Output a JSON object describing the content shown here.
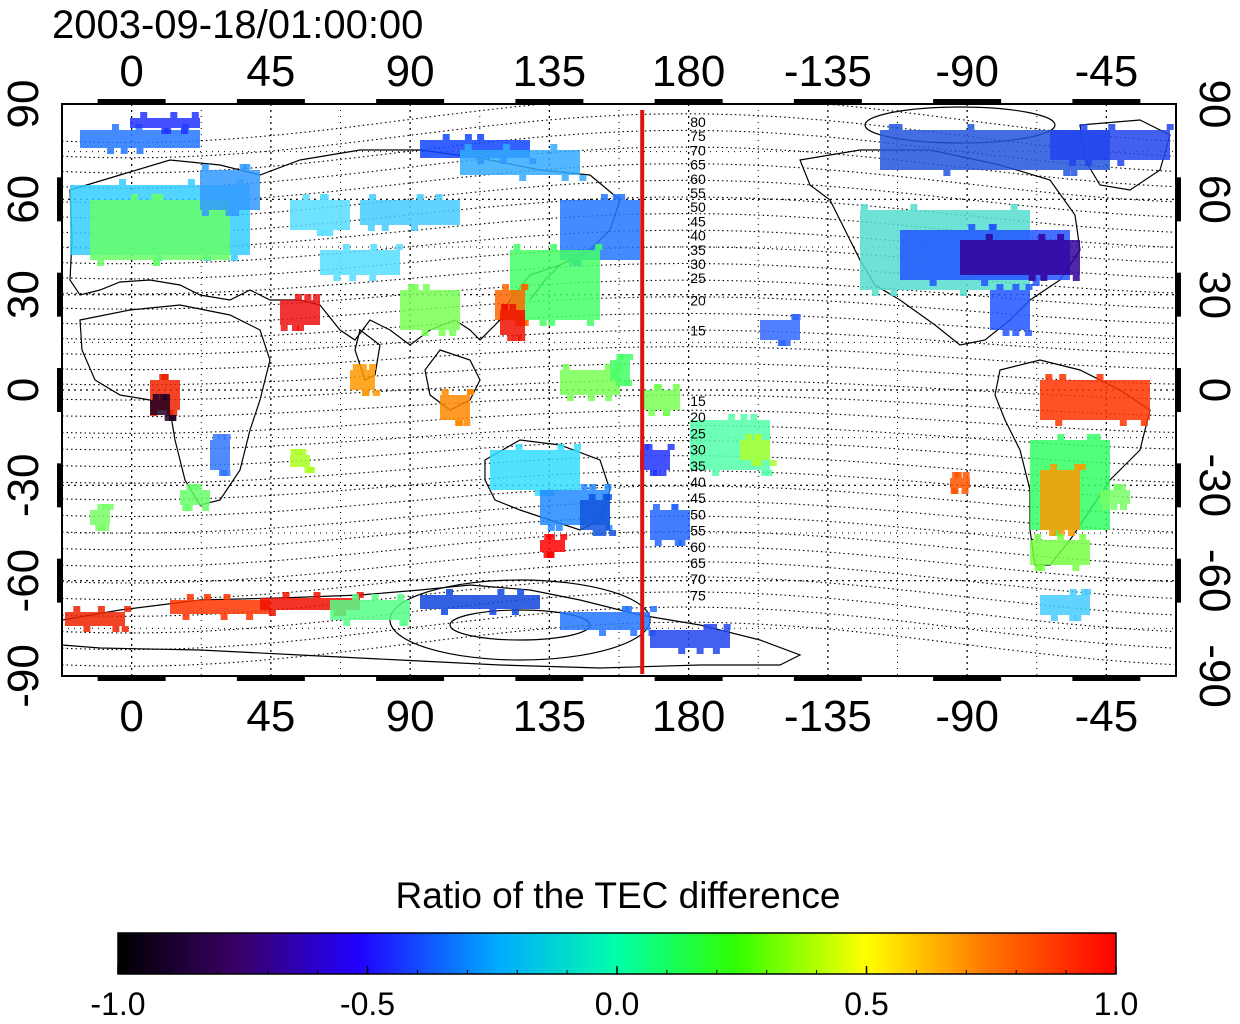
{
  "header": {
    "timestamp": "2003-09-18/01:00:00"
  },
  "map": {
    "lon_ticks": [
      "0",
      "45",
      "90",
      "135",
      "180",
      "-135",
      "-90",
      "-45"
    ],
    "lat_ticks": [
      "90",
      "60",
      "30",
      "0",
      "-30",
      "-60",
      "-90"
    ],
    "meridian_line_lon": 165,
    "meridian_color": "#dd1111",
    "contour_labels_north": [
      "80",
      "75",
      "70",
      "65",
      "60",
      "55",
      "50",
      "45",
      "40",
      "35",
      "30",
      "25",
      "20",
      "15"
    ],
    "contour_labels_south": [
      "15",
      "20",
      "25",
      "30",
      "35",
      "40",
      "45",
      "50",
      "55",
      "60",
      "65",
      "70",
      "75"
    ]
  },
  "colorbar": {
    "title": "Ratio of the TEC difference",
    "ticks": [
      "-1.0",
      "-0.5",
      "0.0",
      "0.5",
      "1.0"
    ],
    "range": [
      -1.0,
      1.0
    ]
  }
}
